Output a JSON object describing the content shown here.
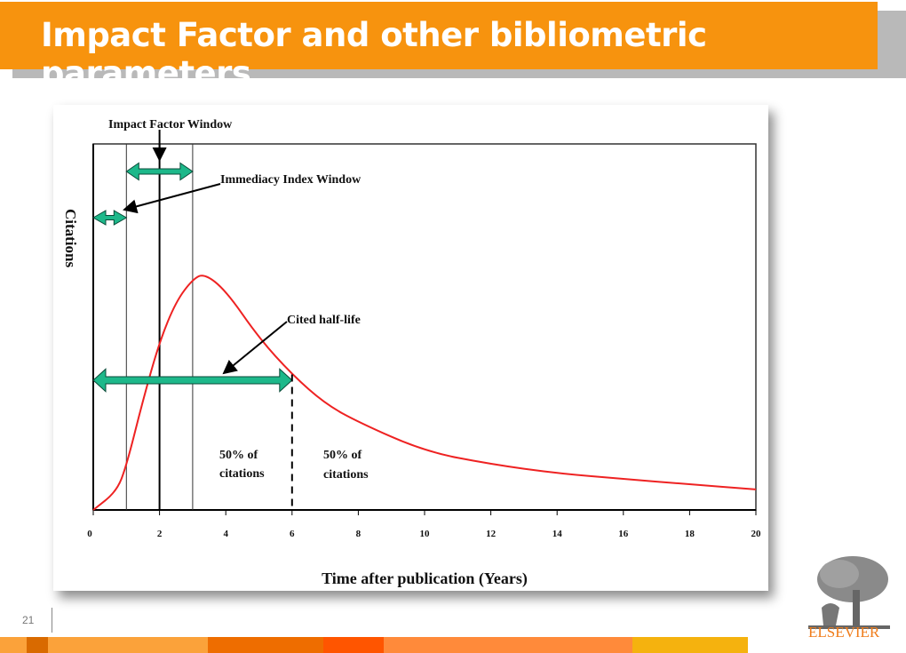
{
  "slide": {
    "title": "Impact Factor and other bibliometric parameters",
    "page_number": "21",
    "brand": "ELSEVIER",
    "colors": {
      "title_bar": "#f7930e",
      "curve": "#ee2222",
      "arrow": "#1db88a",
      "brand": "#f07c1a"
    },
    "stripe_colors": [
      "#fba23a",
      "#d96a00",
      "#fba23a",
      "#ee6d00",
      "#ff5500",
      "#ff8a3a",
      "#f5b20e"
    ]
  },
  "chart_data": {
    "type": "line",
    "title": "",
    "xlabel": "Time after publication (Years)",
    "ylabel": "Citations",
    "xlim": [
      0,
      20
    ],
    "ylim": [
      0,
      100
    ],
    "xticks": [
      "0",
      "2",
      "4",
      "6",
      "8",
      "10",
      "12",
      "14",
      "16",
      "18",
      "20"
    ],
    "grid": false,
    "x": [
      0,
      0.7,
      1,
      1.5,
      2,
      2.5,
      3,
      3.35,
      4,
      5,
      6,
      7,
      8,
      10,
      12,
      14,
      16,
      18,
      20
    ],
    "y": [
      0,
      5,
      12,
      30,
      46,
      57,
      63,
      64.6,
      60,
      47,
      37,
      29,
      24,
      16,
      12.5,
      10,
      8.5,
      7,
      5.6
    ],
    "annotations": {
      "impact_factor_window": "Impact Factor Window",
      "immediacy_index_window": "Immediacy Index Window",
      "cited_half_life": "Cited half-life",
      "left_share_line1": "50% of",
      "left_share_line2": "citations",
      "right_share_line1": "50% of",
      "right_share_line2": "citations"
    },
    "windows": {
      "immediacy_index_years": [
        0,
        1
      ],
      "impact_factor_years": [
        1,
        3
      ],
      "cited_half_life_years": [
        0,
        6
      ]
    }
  }
}
